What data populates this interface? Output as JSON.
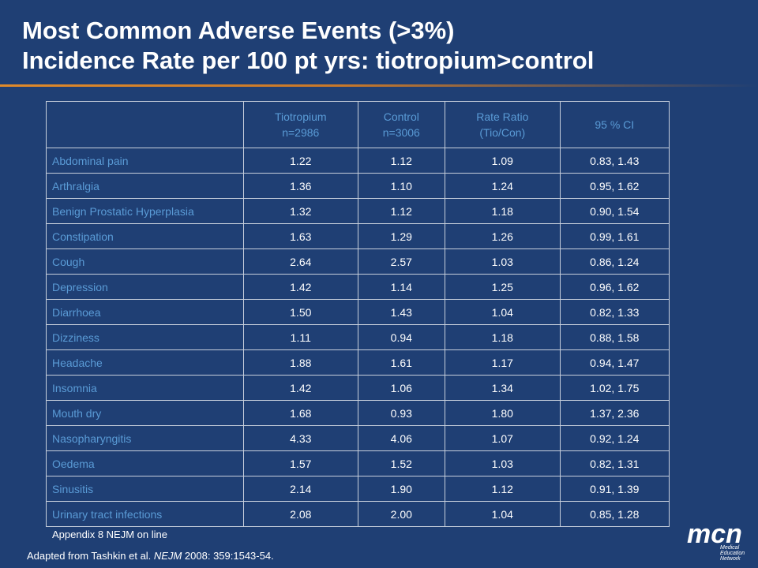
{
  "title": {
    "line1": "Most Common Adverse Events (>3%)",
    "line2": "Incidence Rate per 100 pt yrs: tiotropium>control"
  },
  "table": {
    "headers": [
      "",
      "Tiotropium\nn=2986",
      "Control\nn=3006",
      "Rate Ratio\n(Tio/Con)",
      "95 % CI"
    ],
    "rows": [
      [
        "Abdominal pain",
        "1.22",
        "1.12",
        "1.09",
        "0.83, 1.43"
      ],
      [
        "Arthralgia",
        "1.36",
        "1.10",
        "1.24",
        "0.95, 1.62"
      ],
      [
        "Benign Prostatic Hyperplasia",
        "1.32",
        "1.12",
        "1.18",
        "0.90, 1.54"
      ],
      [
        "Constipation",
        "1.63",
        "1.29",
        "1.26",
        "0.99, 1.61"
      ],
      [
        "Cough",
        "2.64",
        "2.57",
        "1.03",
        "0.86, 1.24"
      ],
      [
        "Depression",
        "1.42",
        "1.14",
        "1.25",
        "0.96, 1.62"
      ],
      [
        "Diarrhoea",
        "1.50",
        "1.43",
        "1.04",
        "0.82, 1.33"
      ],
      [
        "Dizziness",
        "1.11",
        "0.94",
        "1.18",
        "0.88, 1.58"
      ],
      [
        "Headache",
        "1.88",
        "1.61",
        "1.17",
        "0.94, 1.47"
      ],
      [
        "Insomnia",
        "1.42",
        "1.06",
        "1.34",
        "1.02, 1.75"
      ],
      [
        "Mouth dry",
        "1.68",
        "0.93",
        "1.80",
        "1.37, 2.36"
      ],
      [
        "Nasopharyngitis",
        "4.33",
        "4.06",
        "1.07",
        "0.92, 1.24"
      ],
      [
        "Oedema",
        "1.57",
        "1.52",
        "1.03",
        "0.82, 1.31"
      ],
      [
        "Sinusitis",
        "2.14",
        "1.90",
        "1.12",
        "0.91, 1.39"
      ],
      [
        "Urinary tract infections",
        "2.08",
        "2.00",
        "1.04",
        "0.85, 1.28"
      ]
    ]
  },
  "footnotes": {
    "appendix": "Appendix 8 NEJM on line",
    "source_prefix": "Adapted from Tashkin et al. ",
    "source_journal": "NEJM",
    "source_suffix": " 2008: 359:1543-54."
  },
  "logo": {
    "letters": "mcn",
    "line1": "Medical",
    "line2": "Education",
    "line3": "Network"
  },
  "colors": {
    "background": "#1f3f74",
    "header_text": "#5a9bd6",
    "accent_rule": "#e08a2a"
  }
}
